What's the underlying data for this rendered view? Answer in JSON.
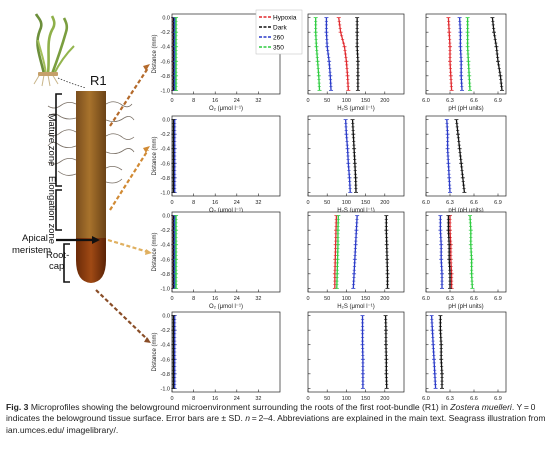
{
  "illustration": {
    "root_label": "R1",
    "zones": [
      "Mature zone",
      "Elongation zone",
      "Apical meristem",
      "Root-cap"
    ]
  },
  "legend": [
    {
      "label": "Hypoxia",
      "color": "#e0282d"
    },
    {
      "label": "Dark",
      "color": "#111111"
    },
    {
      "label": "260",
      "color": "#2a3ac8"
    },
    {
      "label": "350",
      "color": "#2ecc40"
    }
  ],
  "axes": {
    "ylabel": "Distance (mm)",
    "y_ticks": [
      "-1.0",
      "-0.8",
      "-0.6",
      "-0.4",
      "-0.2",
      "0.0"
    ],
    "o2": {
      "label": "O₂ (μmol l⁻¹)",
      "ticks": [
        "0",
        "8",
        "16",
        "24",
        "32"
      ],
      "xlim": [
        0,
        40
      ]
    },
    "h2s": {
      "label": "H₂S (μmol l⁻¹)",
      "ticks": [
        "0",
        "50",
        "100",
        "150",
        "200"
      ],
      "xlim": [
        0,
        250
      ]
    },
    "ph": {
      "label": "pH (pH units)",
      "ticks": [
        "6.0",
        "6.3",
        "6.6",
        "6.9"
      ],
      "xlim": [
        6.0,
        7.0
      ]
    }
  },
  "chart_data": [
    {
      "type": "line",
      "panel": "r1-o2",
      "xlabel": "O₂ (μmol l⁻¹)",
      "ylabel": "Distance (mm)",
      "xlim": [
        0,
        40
      ],
      "ylim": [
        -1.05,
        0.05
      ],
      "series": [
        {
          "name": "Hypoxia",
          "color": "#e0282d",
          "x": [
            0.5,
            0.5,
            0.5,
            0.5,
            0.5,
            0.5
          ],
          "y": [
            -1.0,
            -0.8,
            -0.6,
            -0.4,
            -0.2,
            0.0
          ]
        },
        {
          "name": "Dark",
          "color": "#111111",
          "x": [
            0.5,
            0.5,
            0.5,
            0.5,
            0.5,
            0.5
          ],
          "y": [
            -1.0,
            -0.8,
            -0.6,
            -0.4,
            -0.2,
            0.0
          ]
        },
        {
          "name": "260",
          "color": "#2a3ac8",
          "x": [
            1.0,
            1.0,
            1.0,
            1.0,
            1.0,
            1.0
          ],
          "y": [
            -1.0,
            -0.8,
            -0.6,
            -0.4,
            -0.2,
            0.0
          ]
        },
        {
          "name": "350",
          "color": "#2ecc40",
          "x": [
            1.5,
            1.5,
            1.5,
            1.5,
            1.5,
            1.5
          ],
          "y": [
            -1.0,
            -0.8,
            -0.6,
            -0.4,
            -0.2,
            0.0
          ]
        }
      ]
    },
    {
      "type": "line",
      "panel": "r1-h2s",
      "xlabel": "H₂S (μmol l⁻¹)",
      "ylabel": "",
      "xlim": [
        0,
        250
      ],
      "ylim": [
        -1.05,
        0.05
      ],
      "series": [
        {
          "name": "Hypoxia",
          "color": "#e0282d",
          "x": [
            105,
            103,
            100,
            95,
            85,
            80
          ],
          "y": [
            -1.0,
            -0.8,
            -0.6,
            -0.4,
            -0.2,
            0.0
          ]
        },
        {
          "name": "Dark",
          "color": "#111111",
          "x": [
            130,
            130,
            130,
            128,
            128,
            128
          ],
          "y": [
            -1.0,
            -0.8,
            -0.6,
            -0.4,
            -0.2,
            0.0
          ]
        },
        {
          "name": "260",
          "color": "#2a3ac8",
          "x": [
            60,
            58,
            55,
            50,
            48,
            48
          ],
          "y": [
            -1.0,
            -0.8,
            -0.6,
            -0.4,
            -0.2,
            0.0
          ]
        },
        {
          "name": "350",
          "color": "#2ecc40",
          "x": [
            30,
            28,
            25,
            22,
            20,
            20
          ],
          "y": [
            -1.0,
            -0.8,
            -0.6,
            -0.4,
            -0.2,
            0.0
          ]
        }
      ]
    },
    {
      "type": "line",
      "panel": "r1-ph",
      "xlabel": "pH (pH units)",
      "ylabel": "",
      "xlim": [
        6.0,
        7.0
      ],
      "ylim": [
        -1.05,
        0.05
      ],
      "series": [
        {
          "name": "Hypoxia",
          "color": "#e0282d",
          "x": [
            6.32,
            6.31,
            6.3,
            6.3,
            6.29,
            6.28
          ],
          "y": [
            -1.0,
            -0.8,
            -0.6,
            -0.4,
            -0.2,
            0.0
          ]
        },
        {
          "name": "Dark",
          "color": "#111111",
          "x": [
            6.95,
            6.93,
            6.9,
            6.88,
            6.85,
            6.83
          ],
          "y": [
            -1.0,
            -0.8,
            -0.6,
            -0.4,
            -0.2,
            0.0
          ]
        },
        {
          "name": "260",
          "color": "#2a3ac8",
          "x": [
            6.45,
            6.44,
            6.44,
            6.43,
            6.43,
            6.42
          ],
          "y": [
            -1.0,
            -0.8,
            -0.6,
            -0.4,
            -0.2,
            0.0
          ]
        },
        {
          "name": "350",
          "color": "#2ecc40",
          "x": [
            6.55,
            6.54,
            6.53,
            6.52,
            6.52,
            6.52
          ],
          "y": [
            -1.0,
            -0.8,
            -0.6,
            -0.4,
            -0.2,
            0.0
          ]
        }
      ]
    },
    {
      "type": "line",
      "panel": "elong-o2",
      "xlabel": "O₂ (μmol l⁻¹)",
      "ylabel": "Distance (mm)",
      "xlim": [
        0,
        40
      ],
      "ylim": [
        -1.05,
        0.05
      ],
      "series": [
        {
          "name": "260",
          "color": "#2a3ac8",
          "x": [
            1.0,
            1.0,
            1.0,
            1.0,
            1.0,
            1.0
          ],
          "y": [
            -1.0,
            -0.8,
            -0.6,
            -0.4,
            -0.2,
            0.0
          ]
        },
        {
          "name": "Dark",
          "color": "#111111",
          "x": [
            0.5,
            0.5,
            0.5,
            0.5,
            0.5,
            0.5
          ],
          "y": [
            -1.0,
            -0.8,
            -0.6,
            -0.4,
            -0.2,
            0.0
          ]
        }
      ]
    },
    {
      "type": "line",
      "panel": "elong-h2s",
      "xlabel": "H₂S (μmol l⁻¹)",
      "ylabel": "",
      "xlim": [
        0,
        250
      ],
      "ylim": [
        -1.05,
        0.05
      ],
      "series": [
        {
          "name": "Dark",
          "color": "#111111",
          "x": [
            125,
            124,
            122,
            120,
            118,
            116
          ],
          "y": [
            -1.0,
            -0.8,
            -0.6,
            -0.4,
            -0.2,
            0.0
          ]
        },
        {
          "name": "260",
          "color": "#2a3ac8",
          "x": [
            110,
            108,
            105,
            103,
            100,
            98
          ],
          "y": [
            -1.0,
            -0.8,
            -0.6,
            -0.4,
            -0.2,
            0.0
          ]
        }
      ]
    },
    {
      "type": "line",
      "panel": "elong-ph",
      "xlabel": "pH (pH units)",
      "ylabel": "",
      "xlim": [
        6.0,
        7.0
      ],
      "ylim": [
        -1.05,
        0.05
      ],
      "series": [
        {
          "name": "Dark",
          "color": "#111111",
          "x": [
            6.48,
            6.46,
            6.44,
            6.42,
            6.4,
            6.38
          ],
          "y": [
            -1.0,
            -0.8,
            -0.6,
            -0.4,
            -0.2,
            0.0
          ]
        },
        {
          "name": "260",
          "color": "#2a3ac8",
          "x": [
            6.3,
            6.29,
            6.28,
            6.27,
            6.27,
            6.26
          ],
          "y": [
            -1.0,
            -0.8,
            -0.6,
            -0.4,
            -0.2,
            0.0
          ]
        }
      ]
    },
    {
      "type": "line",
      "panel": "meristem-o2",
      "xlabel": "O₂ (μmol l⁻¹)",
      "ylabel": "Distance (mm)",
      "xlim": [
        0,
        40
      ],
      "ylim": [
        -1.05,
        0.05
      ],
      "series": [
        {
          "name": "Hypoxia",
          "color": "#e0282d",
          "x": [
            0.5,
            0.5,
            0.5,
            0.5,
            0.5,
            0.5
          ],
          "y": [
            -1.0,
            -0.8,
            -0.6,
            -0.4,
            -0.2,
            0.0
          ]
        },
        {
          "name": "Dark",
          "color": "#111111",
          "x": [
            0.5,
            0.5,
            0.5,
            0.5,
            0.5,
            0.5
          ],
          "y": [
            -1.0,
            -0.8,
            -0.6,
            -0.4,
            -0.2,
            0.0
          ]
        },
        {
          "name": "260",
          "color": "#2a3ac8",
          "x": [
            1.0,
            1.0,
            1.0,
            1.0,
            1.0,
            1.0
          ],
          "y": [
            -1.0,
            -0.8,
            -0.6,
            -0.4,
            -0.2,
            0.0
          ]
        },
        {
          "name": "350",
          "color": "#2ecc40",
          "x": [
            1.5,
            1.5,
            1.5,
            1.5,
            1.5,
            1.5
          ],
          "y": [
            -1.0,
            -0.8,
            -0.6,
            -0.4,
            -0.2,
            0.0
          ]
        }
      ]
    },
    {
      "type": "line",
      "panel": "meristem-h2s",
      "xlabel": "H₂S (μmol l⁻¹)",
      "ylabel": "",
      "xlim": [
        0,
        250
      ],
      "ylim": [
        -1.05,
        0.05
      ],
      "series": [
        {
          "name": "Hypoxia",
          "color": "#e0282d",
          "x": [
            70,
            70,
            71,
            72,
            73,
            74
          ],
          "y": [
            -1.0,
            -0.8,
            -0.6,
            -0.4,
            -0.2,
            0.0
          ]
        },
        {
          "name": "Dark",
          "color": "#111111",
          "x": [
            207,
            207,
            206,
            205,
            204,
            204
          ],
          "y": [
            -1.0,
            -0.8,
            -0.6,
            -0.4,
            -0.2,
            0.0
          ]
        },
        {
          "name": "260",
          "color": "#2a3ac8",
          "x": [
            118,
            120,
            122,
            124,
            126,
            128
          ],
          "y": [
            -1.0,
            -0.8,
            -0.6,
            -0.4,
            -0.2,
            0.0
          ]
        },
        {
          "name": "350",
          "color": "#2ecc40",
          "x": [
            75,
            76,
            77,
            78,
            78,
            79
          ],
          "y": [
            -1.0,
            -0.8,
            -0.6,
            -0.4,
            -0.2,
            0.0
          ]
        }
      ]
    },
    {
      "type": "line",
      "panel": "meristem-ph",
      "xlabel": "pH (pH units)",
      "ylabel": "",
      "xlim": [
        6.0,
        7.0
      ],
      "ylim": [
        -1.05,
        0.05
      ],
      "series": [
        {
          "name": "Hypoxia",
          "color": "#e0282d",
          "x": [
            6.32,
            6.32,
            6.31,
            6.31,
            6.3,
            6.3
          ],
          "y": [
            -1.0,
            -0.8,
            -0.6,
            -0.4,
            -0.2,
            0.0
          ]
        },
        {
          "name": "Dark",
          "color": "#111111",
          "x": [
            6.3,
            6.3,
            6.29,
            6.29,
            6.28,
            6.28
          ],
          "y": [
            -1.0,
            -0.8,
            -0.6,
            -0.4,
            -0.2,
            0.0
          ]
        },
        {
          "name": "260",
          "color": "#2a3ac8",
          "x": [
            6.2,
            6.2,
            6.19,
            6.19,
            6.18,
            6.18
          ],
          "y": [
            -1.0,
            -0.8,
            -0.6,
            -0.4,
            -0.2,
            0.0
          ]
        },
        {
          "name": "350",
          "color": "#2ecc40",
          "x": [
            6.58,
            6.57,
            6.57,
            6.56,
            6.56,
            6.55
          ],
          "y": [
            -1.0,
            -0.8,
            -0.6,
            -0.4,
            -0.2,
            0.0
          ]
        }
      ]
    },
    {
      "type": "line",
      "panel": "rootcap-o2",
      "xlabel": "O₂ (μmol l⁻¹)",
      "ylabel": "Distance (mm)",
      "xlim": [
        0,
        40
      ],
      "ylim": [
        -1.05,
        0.05
      ],
      "series": [
        {
          "name": "260",
          "color": "#2a3ac8",
          "x": [
            1.0,
            1.0,
            1.0,
            1.0,
            1.0,
            1.0
          ],
          "y": [
            -1.0,
            -0.8,
            -0.6,
            -0.4,
            -0.2,
            0.0
          ]
        },
        {
          "name": "Dark",
          "color": "#111111",
          "x": [
            0.5,
            0.5,
            0.5,
            0.5,
            0.5,
            0.5
          ],
          "y": [
            -1.0,
            -0.8,
            -0.6,
            -0.4,
            -0.2,
            0.0
          ]
        }
      ]
    },
    {
      "type": "line",
      "panel": "rootcap-h2s",
      "xlabel": "H₂S (μmol l⁻¹)",
      "ylabel": "",
      "xlim": [
        0,
        250
      ],
      "ylim": [
        -1.05,
        0.05
      ],
      "series": [
        {
          "name": "260",
          "color": "#2a3ac8",
          "x": [
            143,
            143,
            143,
            142,
            142,
            142
          ],
          "y": [
            -1.0,
            -0.8,
            -0.6,
            -0.4,
            -0.2,
            0.0
          ]
        },
        {
          "name": "Dark",
          "color": "#111111",
          "x": [
            205,
            204,
            204,
            203,
            203,
            202
          ],
          "y": [
            -1.0,
            -0.8,
            -0.6,
            -0.4,
            -0.2,
            0.0
          ]
        }
      ]
    },
    {
      "type": "line",
      "panel": "rootcap-ph",
      "xlabel": "pH (pH units)",
      "ylabel": "",
      "xlim": [
        6.0,
        7.0
      ],
      "ylim": [
        -1.05,
        0.05
      ],
      "series": [
        {
          "name": "260",
          "color": "#2a3ac8",
          "x": [
            6.12,
            6.11,
            6.1,
            6.09,
            6.08,
            6.07
          ],
          "y": [
            -1.0,
            -0.8,
            -0.6,
            -0.4,
            -0.2,
            0.0
          ]
        },
        {
          "name": "Dark",
          "color": "#111111",
          "x": [
            6.2,
            6.2,
            6.19,
            6.19,
            6.18,
            6.18
          ],
          "y": [
            -1.0,
            -0.8,
            -0.6,
            -0.4,
            -0.2,
            0.0
          ]
        }
      ]
    }
  ],
  "caption": {
    "fig_label": "Fig. 3",
    "text_1": " Microprofiles showing the belowground microenvironment surrounding the roots of the first root-bundle (R1) in ",
    "species": "Zostera muelleri",
    "text_2": ". Y = 0 indicates the belowground tissue surface. Error bars are ± SD. ",
    "n_italic": "n",
    "text_3": " = 2–4. Abbreviations are explained in the main text. Seagrass illustration from ian.umces.edu/ imagelibrary/."
  }
}
